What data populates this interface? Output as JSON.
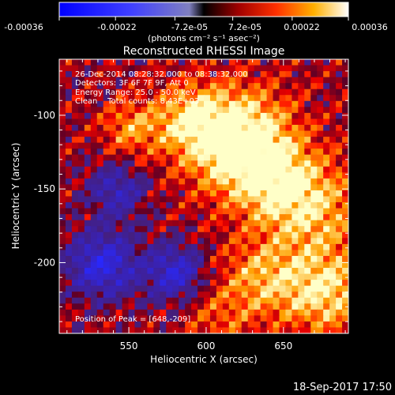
{
  "colorbar": {
    "tick_labels": [
      "-0.00036",
      "-0.00022",
      "-7.2e-05",
      "7.2e-05",
      "0.00022",
      "0.00036"
    ],
    "unit_label": "(photons cm⁻² s⁻¹ asec⁻²)",
    "range": [
      -0.00036,
      0.00036
    ]
  },
  "chart_data": {
    "type": "heatmap",
    "title": "Reconstructed RHESSI Image",
    "xlabel": "Heliocentric X (arcsec)",
    "ylabel": "Heliocentric Y (arcsec)",
    "xlim": [
      505,
      692
    ],
    "ylim": [
      -248,
      -62
    ],
    "xticks": [
      550,
      600,
      650
    ],
    "yticks": [
      -100,
      -150,
      -200
    ],
    "peak": [
      648,
      -209
    ],
    "annotations": [
      "26-Dec-2014 08:28:32.000 to 08:38:32.000",
      "Detectors: 3F 6F 7F 9F, Att 0",
      "Energy Range: 25.0 - 50.0 keV",
      "Clean    Total counts: 8.43E+03",
      "Position of Peak = [648,-209]"
    ],
    "timestamp": "18-Sep-2017 17:50"
  }
}
